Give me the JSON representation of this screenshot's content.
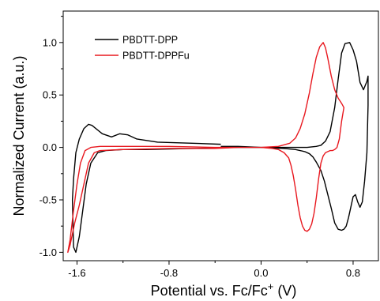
{
  "chart_data": {
    "type": "line",
    "title": "",
    "xlabel": "Potential vs. Fc/Fc",
    "xlabel_superscript": "+",
    "xlabel_unit": " (V)",
    "ylabel": "Normalized Current (a.u.)",
    "xlim": [
      -1.72,
      1.02
    ],
    "ylim": [
      -1.08,
      1.3
    ],
    "x_ticks": [
      -1.6,
      -0.8,
      0.0,
      0.8
    ],
    "x_tick_labels": [
      "-1.6",
      "-0.8",
      "0.0",
      "0.8"
    ],
    "y_ticks": [
      -1.0,
      -0.5,
      0.0,
      0.5,
      1.0
    ],
    "y_tick_labels": [
      "-1.0",
      "-0.5",
      "0.0",
      "0.5",
      "1.0"
    ],
    "grid": false,
    "legend_position": "top-left",
    "series": [
      {
        "name": "PBDTT-DPP",
        "color": "#000000",
        "x": [
          -0.35,
          -0.6,
          -0.9,
          -1.08,
          -1.16,
          -1.23,
          -1.3,
          -1.38,
          -1.47,
          -1.5,
          -1.54,
          -1.58,
          -1.61,
          -1.63,
          -1.64,
          -1.63,
          -1.61,
          -1.58,
          -1.55,
          -1.52,
          -1.48,
          -1.42,
          -1.35,
          -1.2,
          -1.0,
          -0.6,
          -0.2,
          0.2,
          0.4,
          0.48,
          0.52,
          0.56,
          0.6,
          0.64,
          0.67,
          0.7,
          0.73,
          0.77,
          0.8,
          0.83,
          0.86,
          0.89,
          0.92,
          0.93,
          0.93,
          0.92,
          0.9,
          0.88,
          0.86,
          0.84,
          0.82,
          0.8,
          0.78,
          0.76,
          0.74,
          0.72,
          0.7,
          0.67,
          0.64,
          0.61,
          0.58,
          0.55,
          0.52,
          0.48,
          0.45,
          0.42,
          0.38,
          0.3,
          0.2,
          0.0,
          -0.2,
          -0.35
        ],
        "y": [
          0.03,
          0.04,
          0.05,
          0.08,
          0.12,
          0.13,
          0.1,
          0.13,
          0.21,
          0.22,
          0.18,
          0.08,
          -0.05,
          -0.3,
          -0.5,
          -0.95,
          -1.0,
          -0.85,
          -0.6,
          -0.35,
          -0.15,
          -0.05,
          -0.03,
          -0.02,
          -0.02,
          -0.01,
          0.0,
          0.0,
          0.0,
          0.01,
          0.02,
          0.06,
          0.15,
          0.38,
          0.65,
          0.9,
          0.99,
          1.0,
          0.93,
          0.82,
          0.62,
          0.55,
          0.63,
          0.68,
          0.4,
          -0.05,
          -0.32,
          -0.52,
          -0.57,
          -0.52,
          -0.45,
          -0.47,
          -0.57,
          -0.67,
          -0.75,
          -0.78,
          -0.79,
          -0.78,
          -0.72,
          -0.58,
          -0.45,
          -0.32,
          -0.22,
          -0.14,
          -0.09,
          -0.06,
          -0.04,
          -0.02,
          -0.01,
          0.0,
          0.01,
          0.01
        ]
      },
      {
        "name": "PBDTT-DPPFu",
        "color": "#e8181f",
        "x": [
          -0.4,
          -0.8,
          -1.2,
          -1.4,
          -1.45,
          -1.5,
          -1.54,
          -1.58,
          -1.62,
          -1.66,
          -1.68,
          -1.66,
          -1.63,
          -1.6,
          -1.57,
          -1.53,
          -1.48,
          -1.4,
          -1.2,
          -0.8,
          -0.4,
          0.0,
          0.15,
          0.25,
          0.3,
          0.34,
          0.38,
          0.42,
          0.45,
          0.48,
          0.51,
          0.54,
          0.56,
          0.58,
          0.61,
          0.64,
          0.67,
          0.7,
          0.72,
          0.7,
          0.68,
          0.66,
          0.64,
          0.62,
          0.6,
          0.58,
          0.56,
          0.54,
          0.52,
          0.5,
          0.48,
          0.46,
          0.44,
          0.42,
          0.4,
          0.38,
          0.36,
          0.34,
          0.32,
          0.3,
          0.28,
          0.26,
          0.24,
          0.2,
          0.15,
          0.1,
          0.0,
          -0.2,
          -0.4
        ],
        "y": [
          -0.01,
          -0.01,
          -0.02,
          -0.03,
          -0.05,
          -0.15,
          -0.35,
          -0.55,
          -0.72,
          -0.93,
          -1.0,
          -0.88,
          -0.6,
          -0.35,
          -0.15,
          -0.03,
          0.0,
          0.01,
          0.01,
          0.01,
          0.0,
          0.0,
          0.01,
          0.04,
          0.09,
          0.18,
          0.32,
          0.52,
          0.7,
          0.86,
          0.96,
          1.0,
          0.95,
          0.85,
          0.68,
          0.55,
          0.47,
          0.42,
          0.38,
          0.25,
          0.08,
          0.0,
          -0.02,
          -0.03,
          -0.03,
          -0.04,
          -0.05,
          -0.08,
          -0.15,
          -0.3,
          -0.48,
          -0.63,
          -0.73,
          -0.78,
          -0.8,
          -0.79,
          -0.75,
          -0.67,
          -0.55,
          -0.4,
          -0.27,
          -0.17,
          -0.1,
          -0.05,
          -0.02,
          -0.01,
          0.0,
          0.0,
          -0.01
        ]
      }
    ]
  }
}
